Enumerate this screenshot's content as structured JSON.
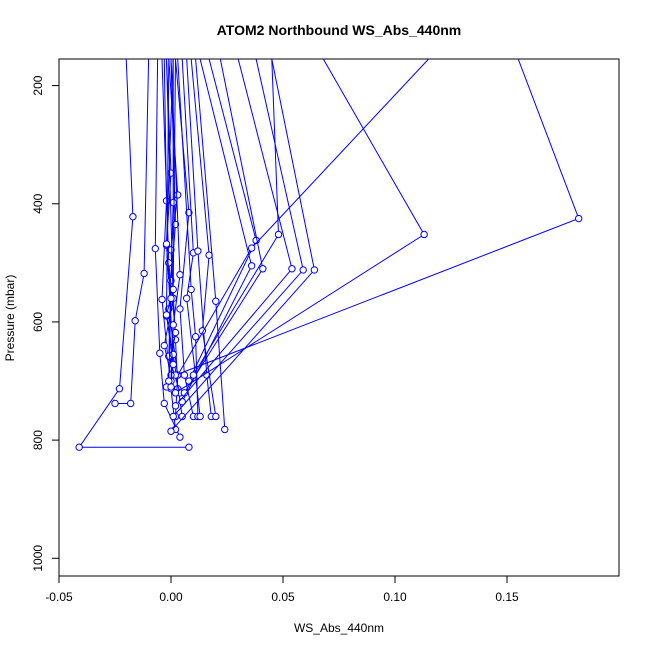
{
  "chart_data": {
    "type": "line",
    "title": "ATOM2 Northbound WS_Abs_440nm",
    "xlabel": "WS_Abs_440nm",
    "ylabel": "Pressure (mbar)",
    "xlim": [
      -0.05,
      0.2
    ],
    "ylim": [
      1030,
      155
    ],
    "y_reversed": true,
    "grid": false,
    "legend": "none",
    "x_ticks": [
      -0.05,
      0,
      0.05,
      0.1,
      0.15
    ],
    "x_tick_labels": [
      "-0.05",
      "0.00",
      "0.05",
      "0.10",
      "0.15"
    ],
    "y_ticks": [
      200,
      400,
      600,
      800,
      1000
    ],
    "y_tick_labels": [
      "200",
      "400",
      "600",
      "800",
      "1000"
    ],
    "series_color": "#0000ff",
    "series": [
      {
        "x": [
          -0.02,
          -0.017,
          -0.023,
          -0.041,
          0.008
        ],
        "y": [
          155,
          422,
          713,
          812,
          812
        ]
      },
      {
        "x": [
          -0.01,
          -0.012,
          -0.016,
          -0.018,
          -0.025
        ],
        "y": [
          155,
          518,
          598,
          738,
          738
        ]
      },
      {
        "x": [
          -0.006,
          -0.007,
          -0.005,
          -0.003,
          0.004
        ],
        "y": [
          155,
          476,
          653,
          738,
          795
        ]
      },
      {
        "x": [
          -0.003,
          -0.002,
          -0.004,
          0.0,
          0.002
        ],
        "y": [
          155,
          395,
          562,
          713,
          782
        ]
      },
      {
        "x": [
          -0.002,
          0.0,
          -0.002,
          0.001,
          0.005
        ],
        "y": [
          155,
          348,
          470,
          655,
          760
        ]
      },
      {
        "x": [
          -0.001,
          0.003,
          0.0,
          0.002,
          0.003
        ],
        "y": [
          155,
          385,
          478,
          630,
          713
        ]
      },
      {
        "x": [
          0.0,
          0.002,
          -0.001,
          0.003,
          0.002
        ],
        "y": [
          155,
          435,
          578,
          690,
          760
        ]
      },
      {
        "x": [
          0.001,
          0.001,
          0.0,
          -0.001,
          0.004
        ],
        "y": [
          155,
          398,
          530,
          658,
          720
        ]
      },
      {
        "x": [
          0.002,
          0.008,
          0.004,
          0.006,
          0.01
        ],
        "y": [
          155,
          415,
          578,
          690,
          760
        ]
      },
      {
        "x": [
          0.003,
          0.009,
          0.011,
          0.012
        ],
        "y": [
          155,
          545,
          625,
          760
        ]
      },
      {
        "x": [
          0.005,
          0.01,
          0.007,
          0.013
        ],
        "y": [
          155,
          483,
          560,
          760
        ]
      },
      {
        "x": [
          0.007,
          0.012,
          0.016,
          0.018
        ],
        "y": [
          155,
          480,
          690,
          760
        ]
      },
      {
        "x": [
          0.009,
          0.017,
          0.014,
          0.02
        ],
        "y": [
          155,
          487,
          615,
          760
        ]
      },
      {
        "x": [
          0.011,
          0.02,
          0.024
        ],
        "y": [
          155,
          565,
          782
        ]
      },
      {
        "x": [
          0.013,
          0.036,
          0.005
        ],
        "y": [
          155,
          505,
          735
        ]
      },
      {
        "x": [
          0.017,
          0.038,
          0.008
        ],
        "y": [
          155,
          462,
          700
        ]
      },
      {
        "x": [
          0.022,
          0.041,
          0.006
        ],
        "y": [
          155,
          510,
          720
        ]
      },
      {
        "x": [
          0.045,
          0.048,
          0.01
        ],
        "y": [
          155,
          452,
          690
        ]
      },
      {
        "x": [
          0.03,
          0.054,
          0.002
        ],
        "y": [
          155,
          510,
          742
        ]
      },
      {
        "x": [
          0.038,
          0.059,
          0.001
        ],
        "y": [
          155,
          512,
          760
        ]
      },
      {
        "x": [
          0.045,
          0.064,
          0.0
        ],
        "y": [
          155,
          512,
          785
        ]
      },
      {
        "x": [
          0.068,
          0.113,
          0.002
        ],
        "y": [
          155,
          452,
          720
        ]
      },
      {
        "x": [
          0.115,
          0.036,
          0.003
        ],
        "y": [
          155,
          475,
          690
        ]
      },
      {
        "x": [
          0.155,
          0.182,
          0.002
        ],
        "y": [
          155,
          425,
          690
        ]
      },
      {
        "x": [
          -0.002,
          0.001,
          -0.003,
          0.0
        ],
        "y": [
          155,
          560,
          640,
          690
        ]
      },
      {
        "x": [
          -0.004,
          -0.001,
          0.002,
          -0.002
        ],
        "y": [
          155,
          500,
          618,
          710
        ]
      },
      {
        "x": [
          0.0,
          0.004,
          0.001,
          0.0
        ],
        "y": [
          155,
          520,
          605,
          700
        ]
      },
      {
        "x": [
          -0.001,
          -0.002,
          0.001,
          0.0
        ],
        "y": [
          155,
          590,
          655,
          710
        ]
      },
      {
        "x": [
          0.002,
          0.001,
          -0.002,
          0.001
        ],
        "y": [
          155,
          545,
          588,
          672
        ]
      },
      {
        "x": [
          0.001,
          -0.002,
          0.0,
          -0.001
        ],
        "y": [
          155,
          468,
          560,
          700
        ]
      }
    ]
  }
}
